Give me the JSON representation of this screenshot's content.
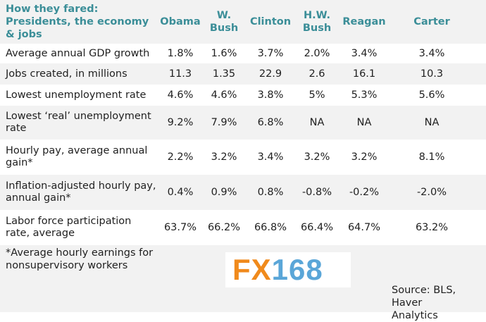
{
  "chart_data": {
    "type": "table",
    "title": "How they fared: Presidents, the economy & jobs",
    "columns": [
      "Obama",
      "W. Bush",
      "Clinton",
      "H.W. Bush",
      "Reagan",
      "Carter"
    ],
    "rows": [
      {
        "label": "Average annual GDP growth",
        "values": [
          "1.8%",
          "1.6%",
          "3.7%",
          "2.0%",
          "3.4%",
          "3.4%"
        ]
      },
      {
        "label": "Jobs created, in millions",
        "values": [
          "11.3",
          "1.35",
          "22.9",
          "2.6",
          "16.1",
          "10.3"
        ]
      },
      {
        "label": "Lowest unemployment rate",
        "values": [
          "4.6%",
          "4.6%",
          "3.8%",
          "5%",
          "5.3%",
          "5.6%"
        ]
      },
      {
        "label": "Lowest ‘real’ unemployment rate",
        "values": [
          "9.2%",
          "7.9%",
          "6.8%",
          "NA",
          "NA",
          "NA"
        ]
      },
      {
        "label": "Hourly pay, average annual gain*",
        "values": [
          "2.2%",
          "3.2%",
          "3.4%",
          "3.2%",
          "3.2%",
          "8.1%"
        ]
      },
      {
        "label": "Inflation-adjusted hourly pay, annual gain*",
        "values": [
          "0.4%",
          "0.9%",
          "0.8%",
          "-0.8%",
          "-0.2%",
          "-2.0%"
        ]
      },
      {
        "label": "Labor force participation rate, average",
        "values": [
          "63.7%",
          "66.2%",
          "66.8%",
          "66.4%",
          "64.7%",
          "63.2%"
        ]
      }
    ],
    "footnote": "*Average hourly earnings for nonsupervisory workers",
    "source": "Source: BLS, Haver Analytics",
    "colors": {
      "header_text": "#3b8e98",
      "band": "#f2f2f2",
      "body_text": "#1f1f1f"
    }
  },
  "watermark": {
    "part1": "FX",
    "part2": "168",
    "color1": "#f08a1c",
    "color2": "#5aa6d8"
  }
}
